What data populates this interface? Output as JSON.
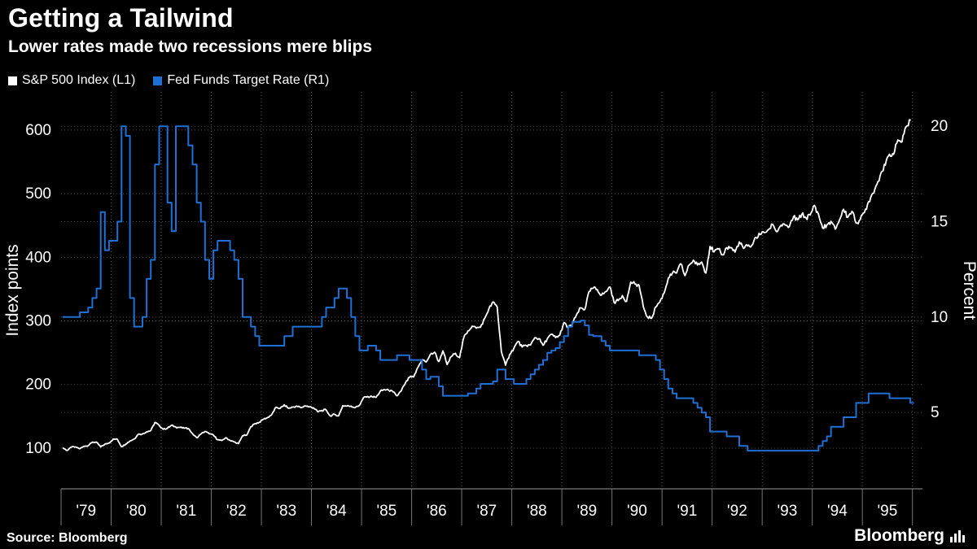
{
  "title": "Getting a Tailwind",
  "subtitle": "Lower rates made two recessions mere blips",
  "source": "Source: Bloomberg",
  "brand": "Bloomberg",
  "colors": {
    "background": "#000000",
    "text": "#ffffff",
    "grid": "#4a4a4a",
    "axis": "#9a9a9a",
    "sp500": "#ffffff",
    "fedfunds": "#1f70d4"
  },
  "legend": [
    {
      "label": "S&P 500 Index (L1)",
      "color": "#ffffff"
    },
    {
      "label": "Fed Funds Target Rate (R1)",
      "color": "#1f70d4"
    }
  ],
  "chart_data": {
    "type": "line",
    "title": "Getting a Tailwind",
    "subtitle": "Lower rates made two recessions mere blips",
    "x_axis": {
      "min": 1979.0,
      "max": 1996.2,
      "labels": [
        "'79",
        "'80",
        "'81",
        "'82",
        "'83",
        "'84",
        "'85",
        "'86",
        "'87",
        "'88",
        "'89",
        "'90",
        "'91",
        "'92",
        "'93",
        "'94",
        "'95"
      ],
      "first_year": 1979,
      "grid": true
    },
    "left_axis": {
      "label": "Index points",
      "ticks": [
        100,
        200,
        300,
        400,
        500,
        600
      ],
      "min": 36,
      "max": 660,
      "grid": true
    },
    "right_axis": {
      "label": "Percent",
      "ticks": [
        5,
        10,
        15,
        20
      ],
      "min": 1.0,
      "max": 21.8,
      "grid": true
    },
    "legend_position": "top-left",
    "series": [
      {
        "name": "S&P 500 Index (L1)",
        "axis": "left",
        "style": "line",
        "color": "#ffffff",
        "start_year": 1979,
        "points_per_year": 12,
        "values_by_year": [
          [
            99.9,
            96.3,
            101.6,
            101.8,
            99.1,
            102.9,
            103.8,
            109.3,
            109.3,
            101.8,
            106.2,
            107.9
          ],
          [
            114.2,
            113.7,
            102.1,
            106.3,
            111.2,
            114.2,
            121.7,
            122.4,
            125.5,
            127.5,
            140.5,
            135.8
          ],
          [
            129.6,
            131.3,
            136.0,
            132.8,
            132.6,
            131.2,
            130.9,
            122.8,
            116.2,
            121.9,
            126.3,
            122.5
          ],
          [
            120.4,
            113.1,
            111.9,
            116.4,
            111.9,
            109.6,
            107.1,
            119.5,
            120.4,
            133.7,
            138.5,
            140.6
          ],
          [
            145.3,
            148.1,
            152.9,
            164.4,
            162.4,
            168.1,
            162.6,
            164.4,
            166.1,
            163.6,
            166.4,
            164.9
          ],
          [
            163.4,
            157.1,
            159.2,
            160.1,
            150.6,
            153.2,
            150.7,
            166.7,
            166.1,
            166.1,
            163.6,
            167.2
          ],
          [
            179.6,
            181.2,
            180.7,
            179.8,
            189.6,
            191.9,
            190.9,
            188.6,
            182.1,
            189.8,
            202.2,
            211.3
          ],
          [
            211.8,
            226.9,
            238.9,
            235.5,
            247.4,
            250.8,
            236.1,
            252.9,
            231.3,
            244.0,
            249.2,
            242.2
          ],
          [
            274.1,
            284.2,
            291.7,
            288.4,
            290.1,
            304.0,
            318.7,
            329.8,
            321.8,
            251.8,
            230.3,
            247.1
          ],
          [
            257.1,
            267.8,
            258.9,
            261.3,
            262.2,
            273.5,
            272.0,
            261.5,
            271.9,
            279.0,
            273.7,
            277.7
          ],
          [
            297.5,
            288.9,
            294.9,
            309.6,
            320.5,
            318.0,
            346.1,
            351.5,
            349.2,
            340.4,
            346.0,
            353.4
          ],
          [
            329.1,
            331.9,
            339.9,
            330.8,
            361.2,
            358.0,
            356.2,
            322.6,
            306.1,
            304.0,
            322.2,
            330.2
          ],
          [
            343.9,
            367.1,
            375.2,
            375.3,
            389.8,
            371.2,
            387.8,
            395.4,
            387.9,
            392.5,
            375.2,
            417.1
          ],
          [
            408.8,
            412.7,
            403.7,
            415.0,
            415.4,
            408.1,
            424.2,
            414.0,
            417.8,
            418.7,
            431.4,
            435.7
          ],
          [
            438.8,
            443.4,
            451.7,
            440.2,
            450.2,
            450.5,
            448.1,
            463.6,
            458.9,
            467.8,
            461.8,
            466.4
          ],
          [
            481.6,
            467.1,
            445.8,
            450.9,
            456.5,
            444.3,
            458.3,
            475.5,
            462.7,
            472.3,
            453.7,
            459.3
          ],
          [
            470.4,
            487.4,
            500.7,
            514.7,
            533.4,
            544.8,
            562.1,
            561.9,
            584.4,
            581.5,
            605.4,
            615.9
          ]
        ]
      },
      {
        "name": "Fed Funds Target Rate (R1)",
        "axis": "right",
        "style": "step",
        "color": "#1f70d4",
        "start_year": 1979,
        "points_per_year": 12,
        "values_by_year": [
          [
            10.0,
            10.0,
            10.0,
            10.0,
            10.25,
            10.25,
            10.5,
            11.0,
            11.5,
            15.5,
            13.5,
            14.0
          ],
          [
            14.0,
            15.0,
            20.0,
            19.5,
            11.0,
            9.5,
            9.5,
            10.0,
            12.0,
            13.0,
            18.0,
            20.0
          ],
          [
            20.0,
            16.0,
            14.5,
            20.0,
            20.0,
            20.0,
            19.0,
            18.0,
            16.0,
            15.0,
            13.0,
            12.0
          ],
          [
            13.5,
            14.0,
            14.0,
            14.0,
            13.5,
            13.0,
            12.0,
            10.0,
            10.0,
            9.5,
            9.0,
            8.5
          ],
          [
            8.5,
            8.5,
            8.5,
            8.5,
            8.5,
            9.0,
            9.0,
            9.5,
            9.5,
            9.5,
            9.5,
            9.5
          ],
          [
            9.5,
            9.5,
            10.0,
            10.5,
            10.5,
            11.0,
            11.5,
            11.5,
            11.0,
            10.0,
            9.0,
            8.25
          ],
          [
            8.25,
            8.5,
            8.5,
            8.25,
            7.75,
            7.75,
            7.75,
            7.75,
            8.0,
            8.0,
            8.0,
            7.75
          ],
          [
            7.75,
            7.75,
            7.25,
            6.75,
            6.875,
            6.875,
            6.375,
            5.875,
            5.875,
            5.875,
            5.875,
            5.875
          ],
          [
            5.875,
            6.0,
            6.0,
            6.25,
            6.5,
            6.5,
            6.5,
            6.625,
            7.25,
            7.25,
            6.75,
            6.75
          ],
          [
            6.5,
            6.5,
            6.5,
            6.75,
            7.0,
            7.25,
            7.5,
            7.75,
            8.125,
            8.25,
            8.375,
            8.6875
          ],
          [
            9.0,
            9.5,
            9.75,
            9.75,
            9.8125,
            9.5625,
            9.0625,
            9.0,
            9.0,
            8.75,
            8.5,
            8.25
          ],
          [
            8.25,
            8.25,
            8.25,
            8.25,
            8.25,
            8.25,
            8.0,
            8.0,
            8.0,
            8.0,
            7.75,
            7.25
          ],
          [
            6.75,
            6.25,
            6.0,
            5.75,
            5.75,
            5.75,
            5.75,
            5.5,
            5.25,
            5.0,
            4.75,
            4.0
          ],
          [
            4.0,
            4.0,
            4.0,
            3.75,
            3.75,
            3.75,
            3.25,
            3.25,
            3.0,
            3.0,
            3.0,
            3.0
          ],
          [
            3.0,
            3.0,
            3.0,
            3.0,
            3.0,
            3.0,
            3.0,
            3.0,
            3.0,
            3.0,
            3.0,
            3.0
          ],
          [
            3.0,
            3.25,
            3.5,
            3.75,
            4.25,
            4.25,
            4.25,
            4.75,
            4.75,
            4.75,
            5.5,
            5.5
          ],
          [
            5.5,
            6.0,
            6.0,
            6.0,
            6.0,
            6.0,
            5.75,
            5.75,
            5.75,
            5.75,
            5.75,
            5.5
          ]
        ]
      }
    ]
  }
}
